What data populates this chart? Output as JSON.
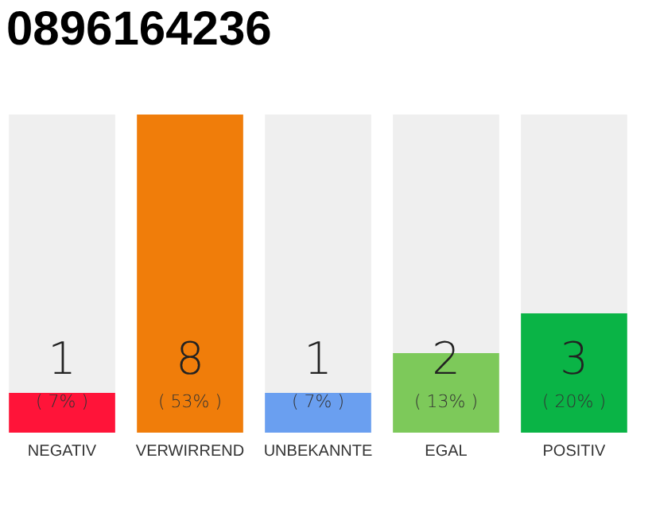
{
  "chart_data": {
    "type": "bar",
    "title": "0896164236",
    "categories": [
      "NEGATIV",
      "VERWIRREND",
      "UNBEKANNTE",
      "EGAL",
      "POSITIV"
    ],
    "values": [
      1,
      8,
      1,
      2,
      3
    ],
    "colors": [
      "#ff1439",
      "#f07d0a",
      "#6a9ff0",
      "#7dc95a",
      "#0ab446"
    ],
    "data_labels": true,
    "annotations": [
      "( 7% )",
      "( 53% )",
      "( 7% )",
      "( 13% )",
      "( 20% )"
    ],
    "grid": false
  }
}
